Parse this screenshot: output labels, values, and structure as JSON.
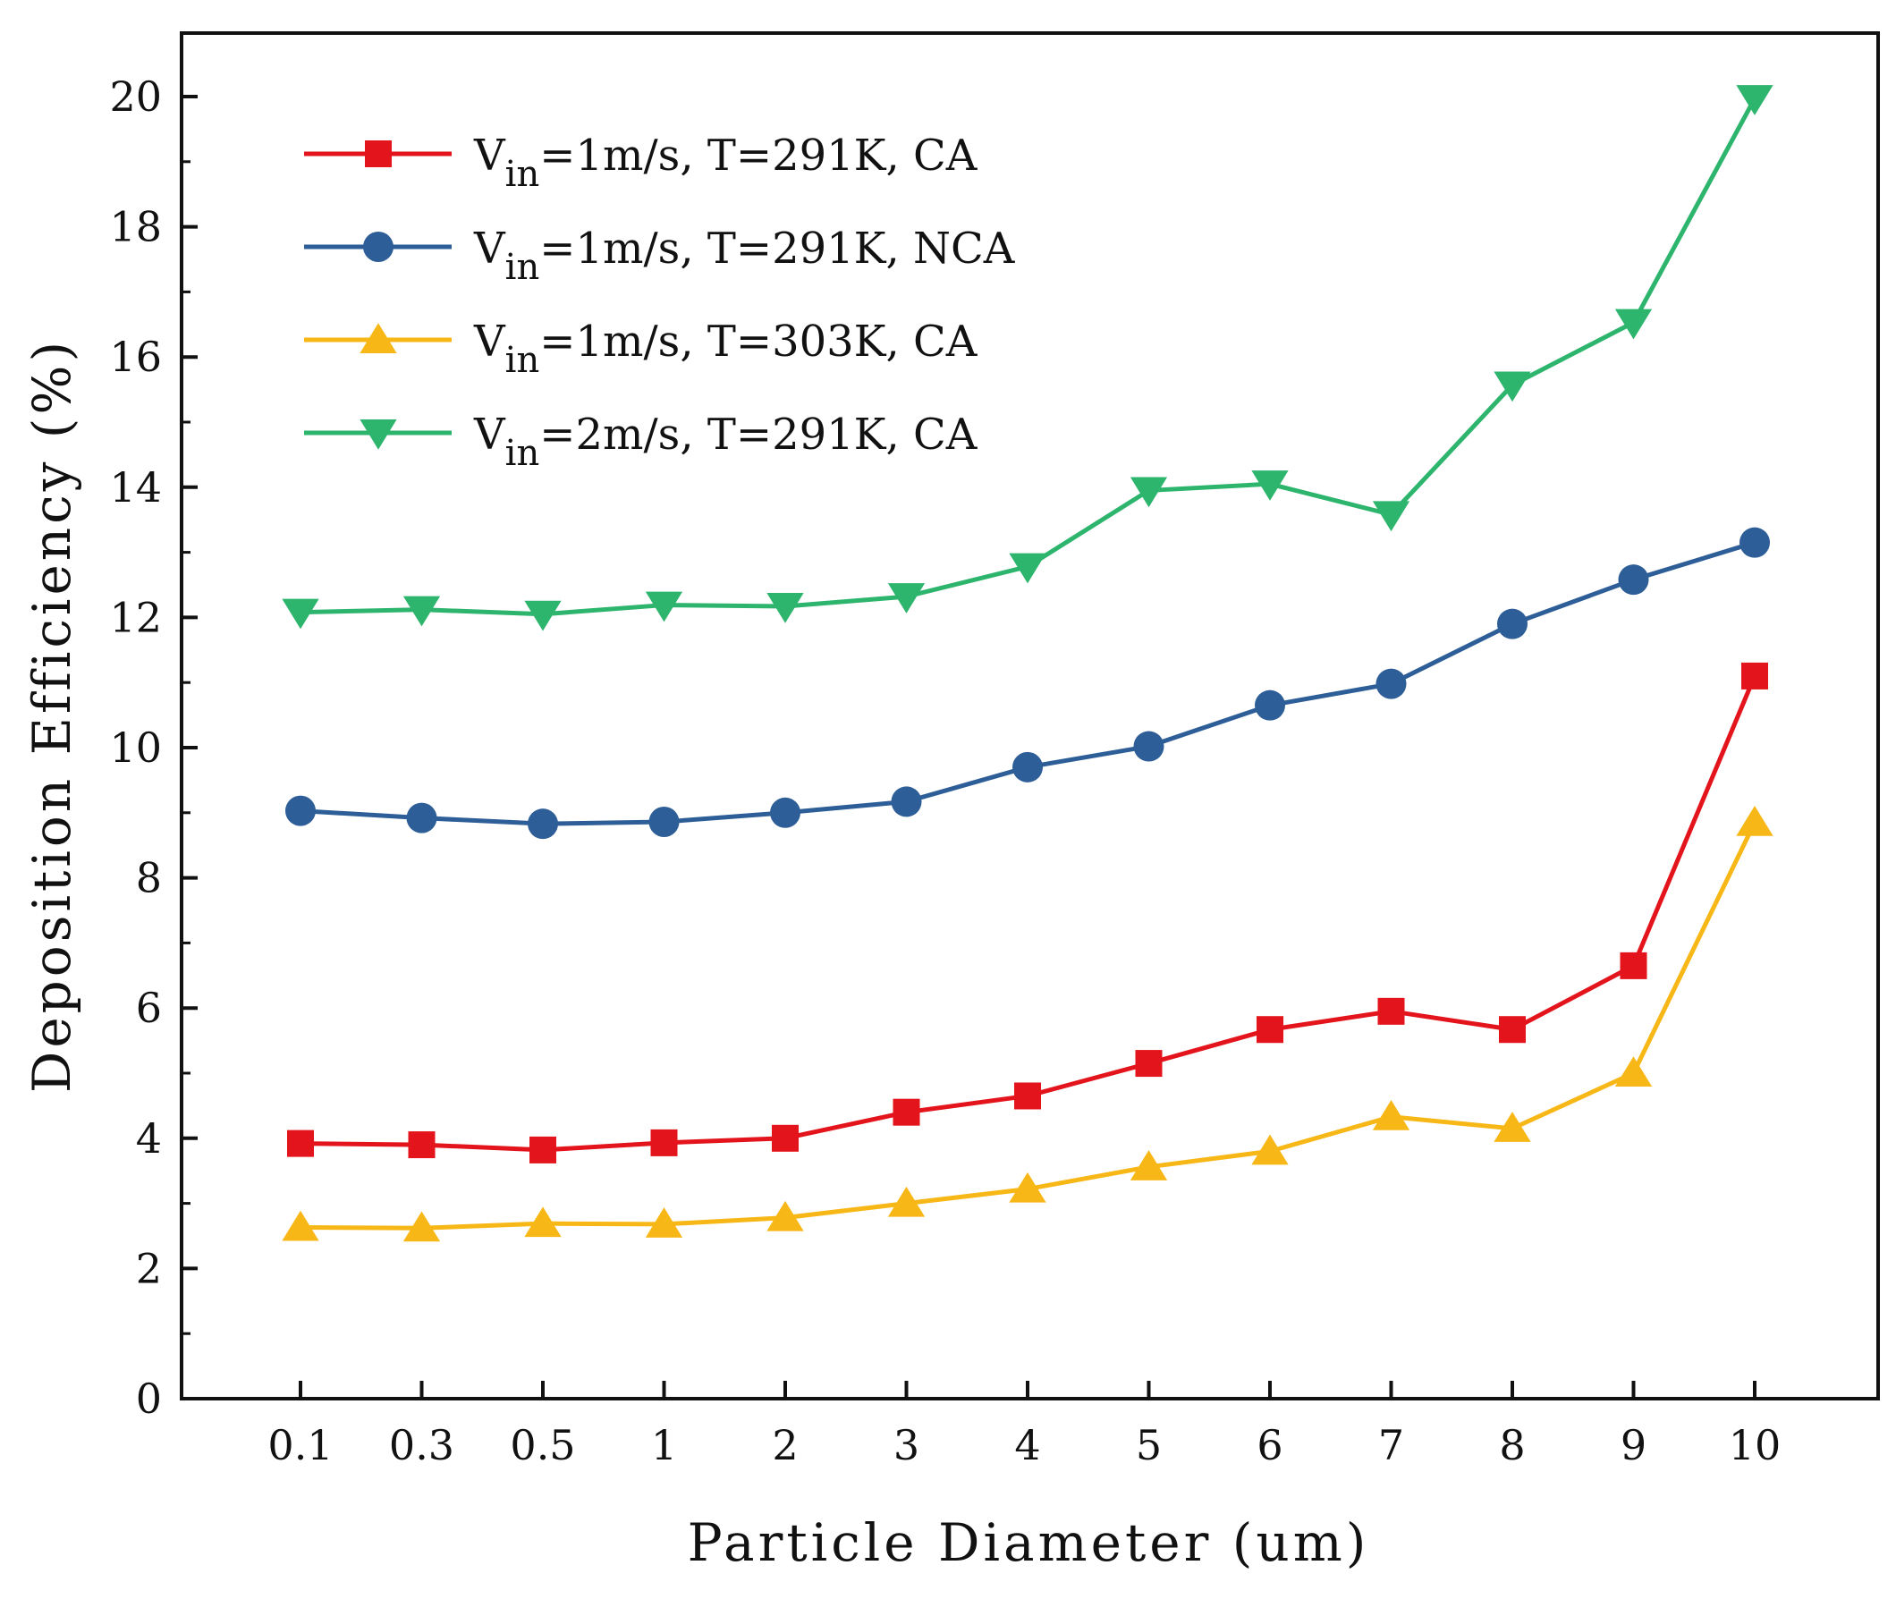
{
  "chart_data": {
    "type": "line",
    "title": "",
    "xlabel": "Particle Diameter (um)",
    "ylabel": "Deposition Efficiency (%)",
    "categories": [
      "0.1",
      "0.3",
      "0.5",
      "1",
      "2",
      "3",
      "4",
      "5",
      "6",
      "7",
      "8",
      "9",
      "10"
    ],
    "ylim": [
      0,
      21
    ],
    "yticks": [
      "0",
      "2",
      "4",
      "6",
      "8",
      "10",
      "12",
      "14",
      "16",
      "18",
      "20"
    ],
    "grid": false,
    "legend_position": "top-left",
    "series": [
      {
        "name": "Vin=1m/s, T=291K, CA",
        "legend_main": "V",
        "legend_sub": "in",
        "legend_rest": "=1m/s, T=291K, CA",
        "color": "#e3141b",
        "marker": "square",
        "values": [
          3.92,
          3.9,
          3.82,
          3.93,
          4.0,
          4.4,
          4.65,
          5.15,
          5.67,
          5.95,
          5.67,
          6.65,
          11.1
        ]
      },
      {
        "name": "Vin=1m/s, T=291K, NCA",
        "legend_main": "V",
        "legend_sub": "in",
        "legend_rest": "=1m/s, T=291K, NCA",
        "color": "#2e5e97",
        "marker": "circle",
        "values": [
          9.03,
          8.92,
          8.83,
          8.86,
          9.0,
          9.17,
          9.7,
          10.02,
          10.65,
          10.98,
          11.9,
          12.58,
          13.15
        ]
      },
      {
        "name": "Vin=1m/s, T=303K, CA",
        "legend_main": "V",
        "legend_sub": "in",
        "legend_rest": "=1m/s, T=303K, CA",
        "color": "#f7b716",
        "marker": "triangle-up",
        "values": [
          2.63,
          2.62,
          2.69,
          2.68,
          2.78,
          3.0,
          3.22,
          3.56,
          3.8,
          4.33,
          4.15,
          5.0,
          8.85
        ]
      },
      {
        "name": "Vin=2m/s, T=291K, CA",
        "legend_main": "V",
        "legend_sub": "in",
        "legend_rest": "=2m/s, T=291K, CA",
        "color": "#2db56d",
        "marker": "triangle-down",
        "values": [
          12.08,
          12.12,
          12.05,
          12.19,
          12.17,
          12.32,
          12.78,
          13.95,
          14.05,
          13.58,
          15.57,
          16.53,
          19.97
        ]
      }
    ]
  }
}
